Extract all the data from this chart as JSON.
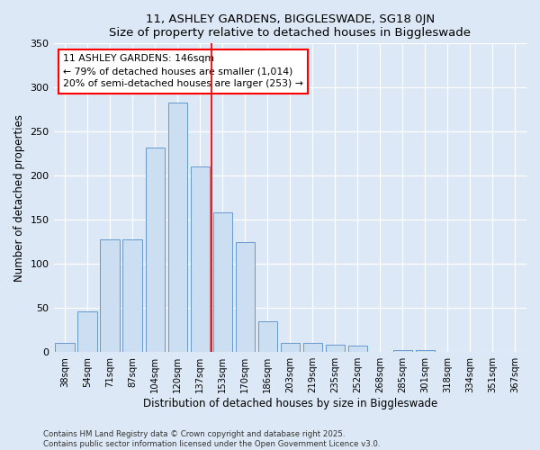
{
  "title": "11, ASHLEY GARDENS, BIGGLESWADE, SG18 0JN",
  "subtitle": "Size of property relative to detached houses in Biggleswade",
  "xlabel": "Distribution of detached houses by size in Biggleswade",
  "ylabel": "Number of detached properties",
  "categories": [
    "38sqm",
    "54sqm",
    "71sqm",
    "87sqm",
    "104sqm",
    "120sqm",
    "137sqm",
    "153sqm",
    "170sqm",
    "186sqm",
    "203sqm",
    "219sqm",
    "235sqm",
    "252sqm",
    "268sqm",
    "285sqm",
    "301sqm",
    "318sqm",
    "334sqm",
    "351sqm",
    "367sqm"
  ],
  "values": [
    10,
    46,
    128,
    128,
    232,
    283,
    210,
    158,
    125,
    35,
    10,
    10,
    8,
    7,
    0,
    2,
    2,
    0,
    0,
    0,
    0
  ],
  "bar_color": "#ccdff2",
  "bar_edge_color": "#6699cc",
  "background_color": "#dce8f5",
  "red_line_index": 6.5,
  "annotation_title": "11 ASHLEY GARDENS: 146sqm",
  "annotation_line1": "← 79% of detached houses are smaller (1,014)",
  "annotation_line2": "20% of semi-detached houses are larger (253) →",
  "footer_line1": "Contains HM Land Registry data © Crown copyright and database right 2025.",
  "footer_line2": "Contains public sector information licensed under the Open Government Licence v3.0.",
  "ylim": [
    0,
    350
  ],
  "yticks": [
    0,
    50,
    100,
    150,
    200,
    250,
    300,
    350
  ],
  "figsize": [
    6.0,
    5.0
  ],
  "dpi": 100
}
